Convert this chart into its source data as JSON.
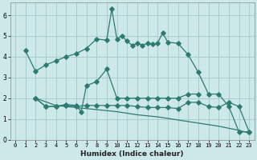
{
  "xlabel": "Humidex (Indice chaleur)",
  "bg_color": "#cce8e8",
  "grid_color": "#aacccc",
  "line_color": "#2d7a70",
  "xlim": [
    -0.5,
    23.5
  ],
  "ylim": [
    0,
    6.6
  ],
  "yticks": [
    0,
    1,
    2,
    3,
    4,
    5,
    6
  ],
  "xticks": [
    0,
    1,
    2,
    3,
    4,
    5,
    6,
    7,
    8,
    9,
    10,
    11,
    12,
    13,
    14,
    15,
    16,
    17,
    18,
    19,
    20,
    21,
    22,
    23
  ],
  "line1_x": [
    1,
    2,
    3,
    4,
    5,
    6,
    7,
    8,
    9,
    9.5,
    10,
    10.5,
    11,
    11.5,
    12,
    12.5,
    13,
    13.5,
    14,
    14.5,
    15,
    16,
    17,
    18,
    19,
    20,
    21,
    22,
    23
  ],
  "line1_y": [
    4.3,
    3.3,
    3.6,
    3.8,
    4.0,
    4.15,
    4.4,
    4.85,
    4.8,
    6.3,
    4.85,
    5.0,
    4.75,
    4.55,
    4.65,
    4.55,
    4.65,
    4.6,
    4.65,
    5.15,
    4.7,
    4.65,
    4.1,
    3.25,
    2.2,
    2.2,
    1.6,
    0.38,
    0.38
  ],
  "line2_x": [
    2,
    3,
    4,
    5,
    6,
    6.5,
    7,
    8,
    9,
    10,
    11,
    12,
    13,
    14,
    15,
    16,
    17,
    18
  ],
  "line2_y": [
    2.0,
    1.6,
    1.6,
    1.7,
    1.65,
    1.35,
    2.6,
    2.8,
    3.4,
    2.0,
    2.0,
    2.0,
    2.0,
    2.0,
    2.0,
    2.0,
    2.2,
    2.2
  ],
  "line3_x": [
    2,
    3,
    4,
    5,
    6,
    7,
    8,
    9,
    10,
    11,
    12,
    13,
    14,
    15,
    16,
    17,
    18,
    19,
    20,
    21,
    22,
    23
  ],
  "line3_y": [
    2.0,
    1.6,
    1.6,
    1.65,
    1.6,
    1.65,
    1.65,
    1.65,
    1.65,
    1.65,
    1.6,
    1.55,
    1.55,
    1.55,
    1.5,
    1.8,
    1.8,
    1.6,
    1.55,
    1.8,
    1.6,
    0.38
  ],
  "line4_x": [
    2,
    4,
    6,
    8,
    10,
    12,
    14,
    16,
    18,
    20,
    22,
    23
  ],
  "line4_y": [
    2.0,
    1.65,
    1.55,
    1.45,
    1.35,
    1.2,
    1.1,
    0.95,
    0.8,
    0.65,
    0.45,
    0.32
  ]
}
